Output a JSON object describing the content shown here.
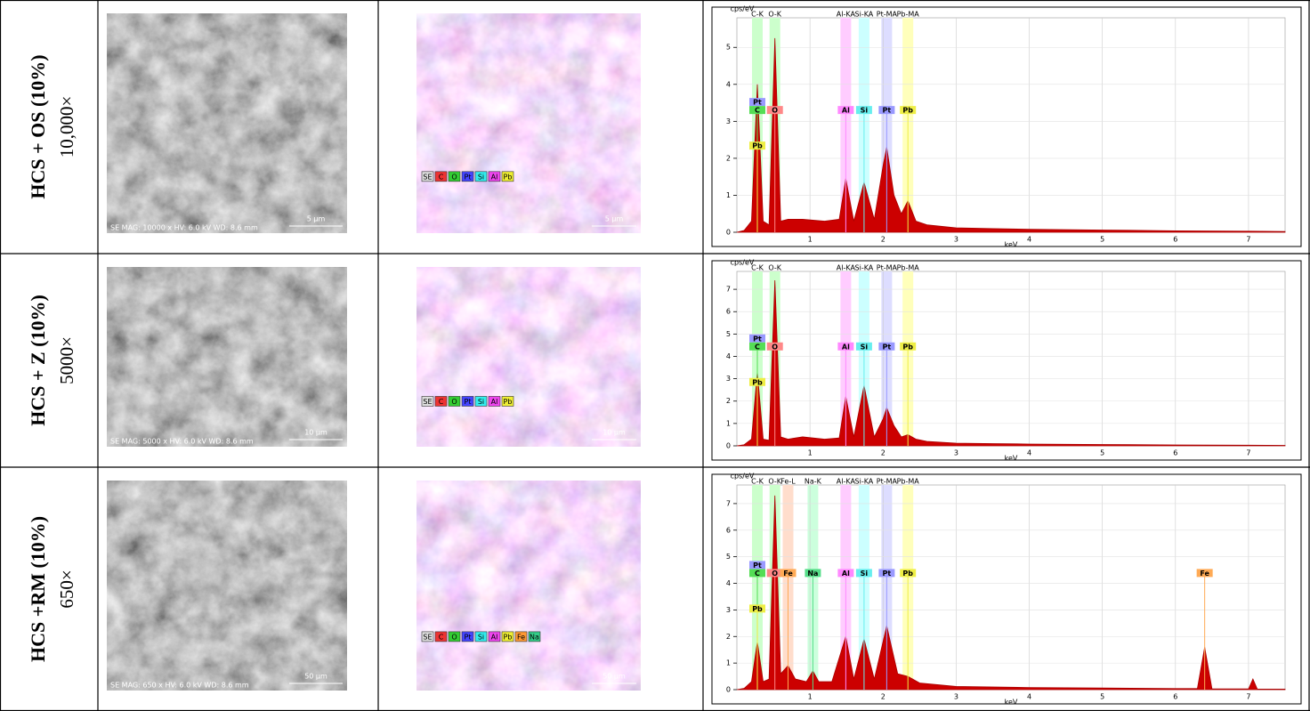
{
  "rows": [
    {
      "label": "HCS + OS (10%)",
      "magnification": "10,000×",
      "sem": {
        "info": "SE MAG: 10000 x HV: 6.0 kV WD: 8.6 mm",
        "scale_bar": "5 µm"
      },
      "map": {
        "scale_bar": "5 µm",
        "legend": [
          {
            "label": "SE",
            "color": "#dddddd"
          },
          {
            "label": "C",
            "color": "#e33"
          },
          {
            "label": "O",
            "color": "#3c3"
          },
          {
            "label": "Pt",
            "color": "#44f"
          },
          {
            "label": "Si",
            "color": "#3ee"
          },
          {
            "label": "Al",
            "color": "#e4e"
          },
          {
            "label": "Pb",
            "color": "#ee3"
          }
        ]
      },
      "spectrum": {
        "y_label": "cps/eV",
        "x_label": "keV",
        "xlim": [
          0,
          7.5
        ],
        "ylim": [
          0,
          5.8
        ],
        "xticks": [
          1,
          2,
          3,
          4,
          5,
          6,
          7
        ],
        "yticks": [
          0,
          1,
          2,
          3,
          4,
          5
        ],
        "lines": [
          {
            "label": "C-K",
            "energy": 0.28,
            "color": "#cfc"
          },
          {
            "label": "O-K",
            "energy": 0.52,
            "color": "#cfc"
          },
          {
            "label": "Al-KA",
            "energy": 1.49,
            "color": "#fcf"
          },
          {
            "label": "Si-KA",
            "energy": 1.74,
            "color": "#cff"
          },
          {
            "label": "Pt-MA",
            "energy": 2.05,
            "color": "#ddf"
          },
          {
            "label": "Pb-MA",
            "energy": 2.34,
            "color": "#ffb"
          }
        ],
        "markers": [
          {
            "label": "Pt",
            "energy": 0.28,
            "color": "#99f"
          },
          {
            "label": "C",
            "energy": 0.28,
            "color": "#5d5"
          },
          {
            "label": "Pb",
            "energy": 0.28,
            "color": "#ee4"
          },
          {
            "label": "O",
            "energy": 0.52,
            "color": "#f88"
          },
          {
            "label": "Al",
            "energy": 1.49,
            "color": "#f8f"
          },
          {
            "label": "Si",
            "energy": 1.74,
            "color": "#6ee"
          },
          {
            "label": "Pt",
            "energy": 2.05,
            "color": "#99f"
          },
          {
            "label": "Pb",
            "energy": 2.34,
            "color": "#ee4"
          }
        ],
        "x": [
          0,
          0.1,
          0.2,
          0.28,
          0.36,
          0.44,
          0.52,
          0.6,
          0.7,
          0.9,
          1.2,
          1.4,
          1.49,
          1.6,
          1.74,
          1.88,
          2.0,
          2.05,
          2.15,
          2.25,
          2.34,
          2.45,
          2.6,
          3,
          3.5,
          4,
          5,
          6,
          7,
          7.5
        ],
        "y": [
          0,
          0.05,
          0.3,
          4.0,
          0.3,
          0.2,
          5.25,
          0.3,
          0.35,
          0.35,
          0.3,
          0.35,
          1.45,
          0.3,
          1.35,
          0.35,
          1.8,
          2.3,
          1.0,
          0.5,
          0.85,
          0.3,
          0.2,
          0.12,
          0.1,
          0.08,
          0.06,
          0.04,
          0.03,
          0.02
        ]
      }
    },
    {
      "label": "HCS + Z (10%)",
      "magnification": "5000×",
      "sem": {
        "info": "SE MAG: 5000 x HV: 6.0 kV WD: 8.6 mm",
        "scale_bar": "10 µm"
      },
      "map": {
        "scale_bar": "10 µm",
        "legend": [
          {
            "label": "SE",
            "color": "#dddddd"
          },
          {
            "label": "C",
            "color": "#e33"
          },
          {
            "label": "O",
            "color": "#3c3"
          },
          {
            "label": "Pt",
            "color": "#44f"
          },
          {
            "label": "Si",
            "color": "#3ee"
          },
          {
            "label": "Al",
            "color": "#e4e"
          },
          {
            "label": "Pb",
            "color": "#ee3"
          }
        ]
      },
      "spectrum": {
        "y_label": "cps/eV",
        "x_label": "keV",
        "xlim": [
          0,
          7.5
        ],
        "ylim": [
          0,
          7.8
        ],
        "xticks": [
          1,
          2,
          3,
          4,
          5,
          6,
          7
        ],
        "yticks": [
          0,
          1,
          2,
          3,
          4,
          5,
          6,
          7
        ],
        "lines": [
          {
            "label": "C-K",
            "energy": 0.28,
            "color": "#cfc"
          },
          {
            "label": "O-K",
            "energy": 0.52,
            "color": "#cfc"
          },
          {
            "label": "Al-KA",
            "energy": 1.49,
            "color": "#fcf"
          },
          {
            "label": "Si-KA",
            "energy": 1.74,
            "color": "#cff"
          },
          {
            "label": "Pt-MA",
            "energy": 2.05,
            "color": "#ddf"
          },
          {
            "label": "Pb-MA",
            "energy": 2.34,
            "color": "#ffb"
          }
        ],
        "markers": [
          {
            "label": "Pt",
            "energy": 0.28,
            "color": "#99f"
          },
          {
            "label": "C",
            "energy": 0.28,
            "color": "#5d5"
          },
          {
            "label": "Pb",
            "energy": 0.28,
            "color": "#ee4"
          },
          {
            "label": "O",
            "energy": 0.52,
            "color": "#f88"
          },
          {
            "label": "Al",
            "energy": 1.49,
            "color": "#f8f"
          },
          {
            "label": "Si",
            "energy": 1.74,
            "color": "#6ee"
          },
          {
            "label": "Pt",
            "energy": 2.05,
            "color": "#99f"
          },
          {
            "label": "Pb",
            "energy": 2.34,
            "color": "#ee4"
          }
        ],
        "x": [
          0,
          0.1,
          0.2,
          0.28,
          0.36,
          0.44,
          0.52,
          0.6,
          0.7,
          0.9,
          1.2,
          1.4,
          1.49,
          1.6,
          1.74,
          1.88,
          2.0,
          2.05,
          2.15,
          2.25,
          2.34,
          2.45,
          2.6,
          3,
          3.5,
          4,
          5,
          6,
          7,
          7.5
        ],
        "y": [
          0,
          0.05,
          0.3,
          3.3,
          0.3,
          0.25,
          7.4,
          0.4,
          0.3,
          0.4,
          0.3,
          0.35,
          2.2,
          0.4,
          2.7,
          0.4,
          1.2,
          1.7,
          0.9,
          0.4,
          0.5,
          0.3,
          0.2,
          0.12,
          0.1,
          0.08,
          0.06,
          0.04,
          0.03,
          0.02
        ]
      }
    },
    {
      "label": "HCS +RM (10%)",
      "magnification": "650×",
      "sem": {
        "info": "SE MAG: 650 x HV: 6.0 kV WD: 8.6 mm",
        "scale_bar": "50 µm"
      },
      "map": {
        "scale_bar": "50 µm",
        "legend": [
          {
            "label": "SE",
            "color": "#dddddd"
          },
          {
            "label": "C",
            "color": "#e33"
          },
          {
            "label": "O",
            "color": "#3c3"
          },
          {
            "label": "Pt",
            "color": "#44f"
          },
          {
            "label": "Si",
            "color": "#3ee"
          },
          {
            "label": "Al",
            "color": "#e4e"
          },
          {
            "label": "Pb",
            "color": "#ee3"
          },
          {
            "label": "Fe",
            "color": "#f93"
          },
          {
            "label": "Na",
            "color": "#3c8"
          }
        ]
      },
      "spectrum": {
        "y_label": "cps/eV",
        "x_label": "keV",
        "xlim": [
          0,
          7.5
        ],
        "ylim": [
          0,
          7.7
        ],
        "xticks": [
          1,
          2,
          3,
          4,
          5,
          6,
          7
        ],
        "yticks": [
          0,
          1,
          2,
          3,
          4,
          5,
          6,
          7
        ],
        "lines": [
          {
            "label": "C-K",
            "energy": 0.28,
            "color": "#cfc"
          },
          {
            "label": "O-K",
            "energy": 0.52,
            "color": "#cfc"
          },
          {
            "label": "Fe-L",
            "energy": 0.7,
            "color": "#fdc"
          },
          {
            "label": "Na-K",
            "energy": 1.04,
            "color": "#cfd"
          },
          {
            "label": "Al-KA",
            "energy": 1.49,
            "color": "#fcf"
          },
          {
            "label": "Si-KA",
            "energy": 1.74,
            "color": "#cff"
          },
          {
            "label": "Pt-MA",
            "energy": 2.05,
            "color": "#ddf"
          },
          {
            "label": "Pb-MA",
            "energy": 2.34,
            "color": "#ffb"
          }
        ],
        "markers": [
          {
            "label": "Pt",
            "energy": 0.28,
            "color": "#99f"
          },
          {
            "label": "C",
            "energy": 0.28,
            "color": "#5d5"
          },
          {
            "label": "Pb",
            "energy": 0.28,
            "color": "#ee4"
          },
          {
            "label": "O",
            "energy": 0.52,
            "color": "#f88"
          },
          {
            "label": "Fe",
            "energy": 0.7,
            "color": "#fa5"
          },
          {
            "label": "Na",
            "energy": 1.04,
            "color": "#5d8"
          },
          {
            "label": "Al",
            "energy": 1.49,
            "color": "#f8f"
          },
          {
            "label": "Si",
            "energy": 1.74,
            "color": "#6ee"
          },
          {
            "label": "Pt",
            "energy": 2.05,
            "color": "#99f"
          },
          {
            "label": "Pb",
            "energy": 2.34,
            "color": "#ee4"
          },
          {
            "label": "Fe",
            "energy": 6.4,
            "color": "#fa5"
          }
        ],
        "x": [
          0,
          0.1,
          0.2,
          0.28,
          0.36,
          0.44,
          0.52,
          0.6,
          0.7,
          0.8,
          0.95,
          1.04,
          1.12,
          1.3,
          1.49,
          1.6,
          1.74,
          1.88,
          2.05,
          2.2,
          2.34,
          2.5,
          3,
          4,
          5,
          6,
          6.3,
          6.4,
          6.5,
          7,
          7.06,
          7.12,
          7.5
        ],
        "y": [
          0,
          0.05,
          0.3,
          1.8,
          0.3,
          0.4,
          7.3,
          0.6,
          0.9,
          0.4,
          0.3,
          0.7,
          0.3,
          0.3,
          2.0,
          0.4,
          1.9,
          0.4,
          2.4,
          0.6,
          0.5,
          0.25,
          0.12,
          0.08,
          0.06,
          0.04,
          0.04,
          1.6,
          0.03,
          0.03,
          0.4,
          0.02,
          0.02
        ]
      }
    }
  ]
}
